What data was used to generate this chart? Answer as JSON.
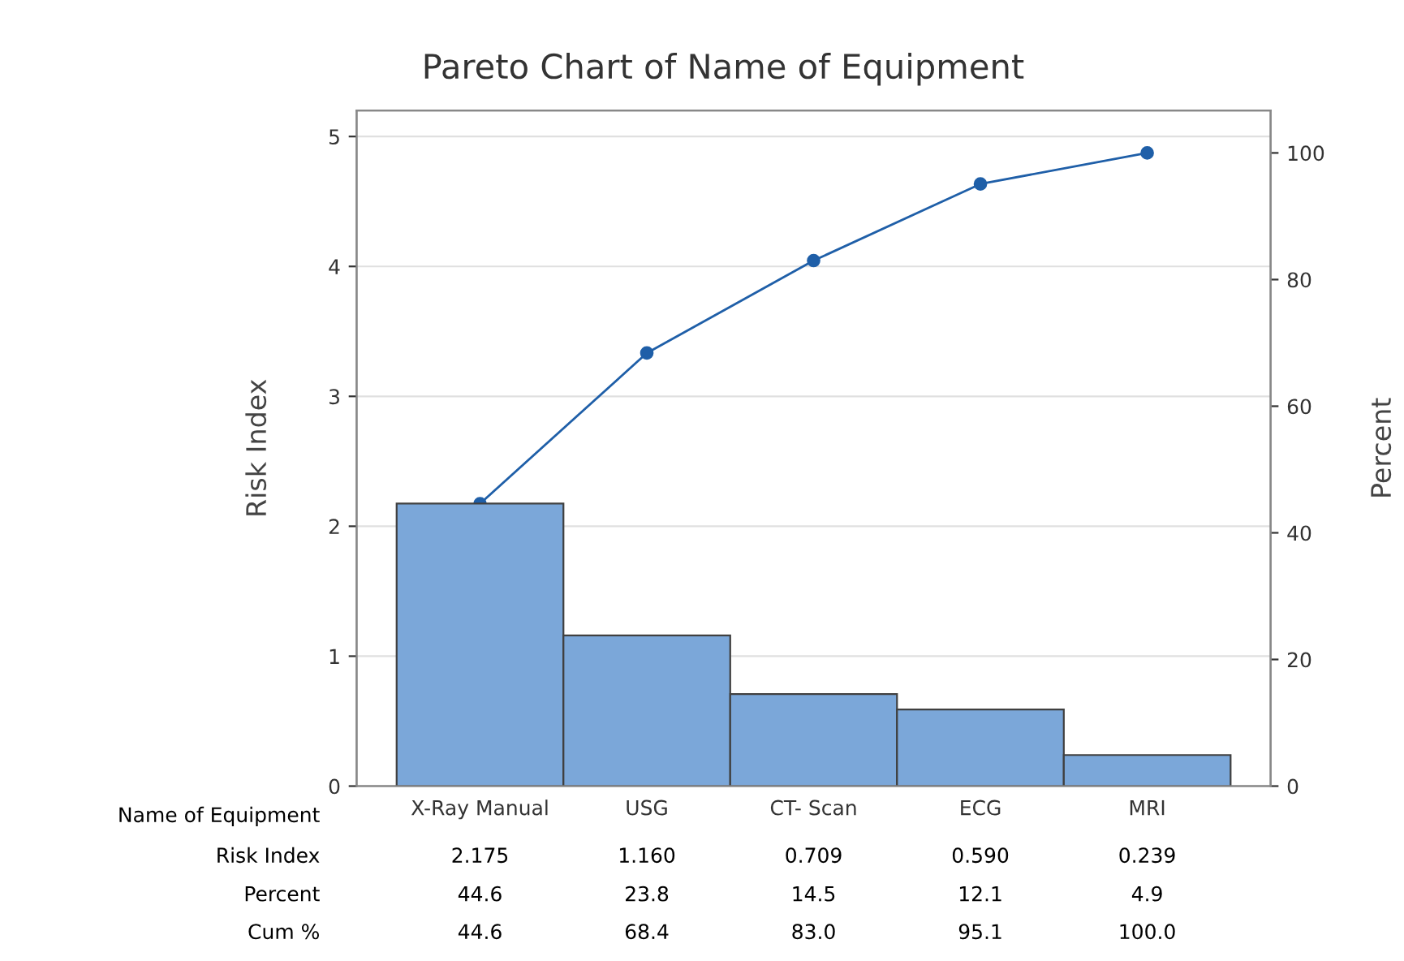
{
  "chart_data": {
    "type": "bar",
    "title": "Pareto Chart of Name of Equipment",
    "xlabel": "Name of Equipment",
    "ylabel": "Risk Index",
    "y2label": "Percent",
    "categories": [
      "X-Ray Manual",
      "USG",
      "CT- Scan",
      "ECG",
      "MRI"
    ],
    "series": [
      {
        "color": "#7ba7d9",
        "values": [
          2.175,
          1.16,
          0.709,
          0.59,
          0.239
        ],
        "value_labels": [
          "2.175",
          "1.160",
          "0.709",
          "0.590",
          "0.239"
        ]
      },
      {
        "type": "line",
        "axis": "y2",
        "color": "#1f5fa8",
        "marker": "circle",
        "values": [
          44.6,
          68.4,
          83.0,
          95.1,
          100.0
        ],
        "value_labels": [
          "44.6",
          "68.4",
          "83.0",
          "95.1",
          "100.0"
        ]
      }
    ],
    "annotations": [
      "Risk Index",
      "Percent",
      "Cum %",
      "44.6",
      "23.8",
      "14.5",
      "12.1",
      "4.9"
    ],
    "ylim": [
      0,
      5.2
    ],
    "yticks": [
      0,
      1,
      2,
      3,
      4,
      5
    ],
    "y2lim": [
      0,
      106.7
    ],
    "y2ticks": [
      0,
      20,
      40,
      60,
      80,
      100
    ],
    "grid": "y",
    "legend": false
  }
}
